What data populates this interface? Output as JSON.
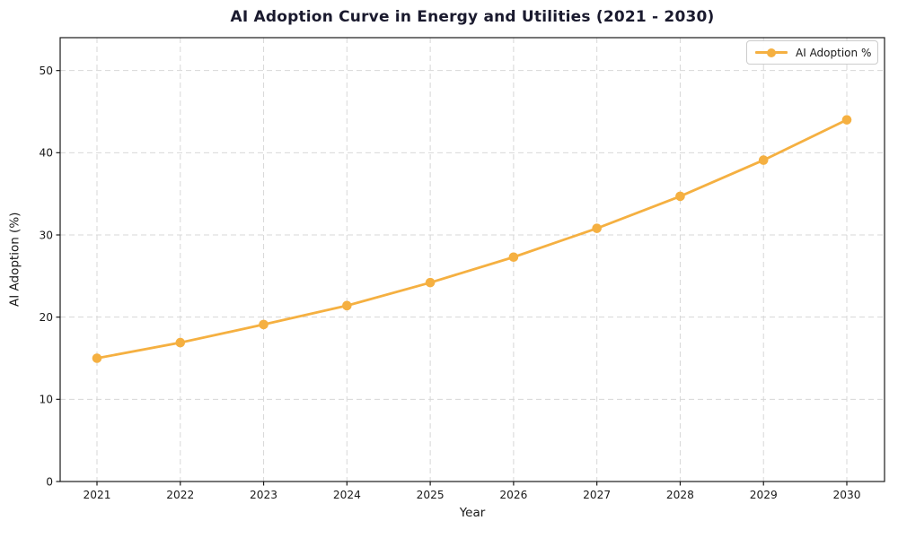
{
  "chart_data": {
    "type": "line",
    "title": "AI Adoption Curve in Energy and Utilities (2021 - 2030)",
    "xlabel": "Year",
    "ylabel": "AI Adoption (%)",
    "categories": [
      "2021",
      "2022",
      "2023",
      "2024",
      "2025",
      "2026",
      "2027",
      "2028",
      "2029",
      "2030"
    ],
    "series": [
      {
        "name": "AI Adoption %",
        "color": "#F5B041",
        "values": [
          15.0,
          16.9,
          19.1,
          21.4,
          24.2,
          27.3,
          30.8,
          34.7,
          39.1,
          44.0
        ]
      }
    ],
    "ylim": [
      0,
      54
    ],
    "yticks": [
      0,
      10,
      20,
      30,
      40,
      50
    ],
    "grid": true,
    "grid_style": "dashed",
    "legend_position": "upper right",
    "marker": "circle"
  },
  "styles": {
    "accent": "#F5B041",
    "grid_color": "#D7D7D7",
    "spine_color": "#1A1A1A",
    "text_color": "#1A1A1A",
    "title_color": "#1A1A2E",
    "legend_border": "#CCCCCC",
    "background": "#FFFFFF"
  }
}
